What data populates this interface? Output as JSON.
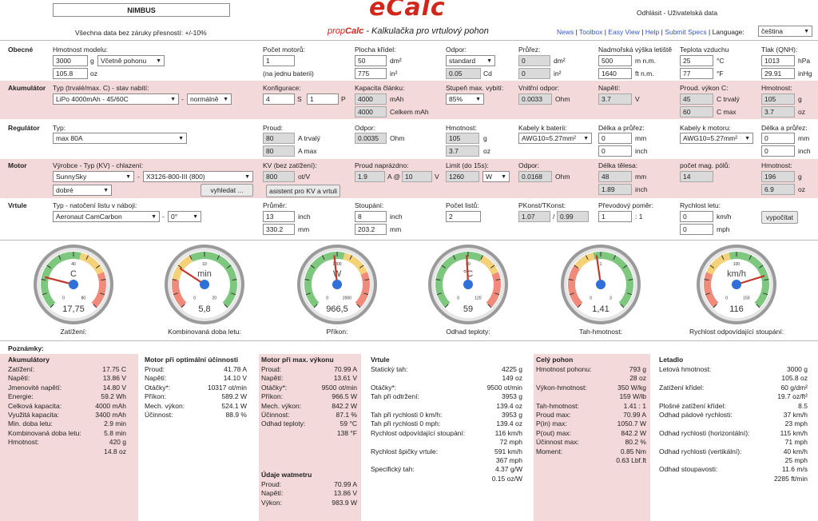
{
  "header": {
    "model_name": "NIMBUS",
    "disclaimer": "Všechna data bez záruky přesností: +/-10%",
    "logo": "eCalc",
    "tagline_prop": "prop",
    "tagline_calc": "Calc",
    "tagline_rest": " - Kalkulačka pro vrtulový pohon",
    "login": "Odhlásit - Uživatelská data",
    "links": [
      "News",
      "Toolbox",
      "Easy View",
      "Help",
      "Submit Specs"
    ],
    "language_label": "Language:",
    "language_value": "čeština"
  },
  "general": {
    "title": "Obecné",
    "model_weight_label": "Hmotnost modelu:",
    "weight": "3000",
    "weight_unit": "g",
    "weight_mode": "Včetně pohonu",
    "weight_oz": "105.8",
    "weight_oz_unit": "oz",
    "motors_label": "Počet motorů:",
    "motors": "1",
    "motors_note": "(na jednu baterii)",
    "wing_area_label": "Plocha křídel:",
    "wing_area": "50",
    "wing_area_unit": "dm²",
    "wing_area_in": "775",
    "wing_area_in_unit": "in²",
    "drag_label": "Odpor:",
    "drag": "standard",
    "cd": "0.05",
    "cd_unit": "Cd",
    "span_label": "Průřez:",
    "span": "0",
    "span_unit": "dm²",
    "span_in": "0",
    "span_in_unit": "in²",
    "elev_label": "Nadmořská výška letiště",
    "elev": "500",
    "elev_unit": "m n.m.",
    "elev_ft": "1640",
    "elev_ft_unit": "ft n.m.",
    "temp_label": "Teplota vzduchu",
    "temp": "25",
    "temp_unit": "°C",
    "temp_f": "77",
    "temp_f_unit": "°F",
    "press_label": "Tlak (QNH):",
    "press": "1013",
    "press_unit": "hPa",
    "press_in": "29.91",
    "press_in_unit": "inHg"
  },
  "battery": {
    "title": "Akumulátor",
    "type_label": "Typ (trvalé/max. C) - stav nabití:",
    "type": "LiPo 4000mAh - 45/60C",
    "state": "normálně",
    "config_label": "Konfigurace:",
    "s": "4",
    "s_unit": "S",
    "p": "1",
    "p_unit": "P",
    "cap_label": "Kapacita článku:",
    "cap": "4000",
    "cap_unit": "mAh",
    "cap_total": "4000",
    "cap_total_unit": "Celkem mAh",
    "discharge_label": "Stupeň max. vybití:",
    "discharge": "85%",
    "res_label": "Vnitřní odpor:",
    "res": "0.0033",
    "res_unit": "Ohm",
    "volt_label": "Napětí:",
    "volt": "3.7",
    "volt_unit": "V",
    "cur_label": "Proud. výkon C:",
    "c_cont": "45",
    "c_cont_unit": "C trvalý",
    "c_max": "60",
    "c_max_unit": "C max",
    "mass_label": "Hmotnost:",
    "mass": "105",
    "mass_unit": "g",
    "mass_oz": "3.7",
    "mass_oz_unit": "oz"
  },
  "esc": {
    "title": "Regulátor",
    "type_label": "Typ:",
    "type": "max 80A",
    "cur_label": "Proud:",
    "cur_cont": "80",
    "cur_cont_unit": "A trvalý",
    "cur_max": "80",
    "cur_max_unit": "A max",
    "res_label": "Odpor:",
    "res": "0.0035",
    "res_unit": "Ohm",
    "mass_label": "Hmotnost:",
    "mass": "105",
    "mass_unit": "g",
    "mass_oz": "3.7",
    "mass_oz_unit": "oz",
    "cable_bat_label": "Kabely k baterii:",
    "cable_bat": "AWG10=5.27mm²",
    "len_label": "Délka a průřez:",
    "len1": "0",
    "len1_unit": "mm",
    "len1_in": "0",
    "len1_in_unit": "inch",
    "cable_mot_label": "Kabely k motoru:",
    "cable_mot": "AWG10=5.27mm²",
    "len2": "0",
    "len2_unit": "mm",
    "len2_in": "0",
    "len2_in_unit": "inch"
  },
  "motor": {
    "title": "Motor",
    "maker_label": "Výrobce - Typ (KV) - chlazení:",
    "maker": "SunnySky",
    "type": "X3126-800-III (800)",
    "cooling": "dobré",
    "search_btn": "vyhledat ...",
    "kv_label": "KV (bez zatížení):",
    "kv": "800",
    "kv_unit": "ot/V",
    "kv_btn": "asistent pro KV a vrtuli",
    "i0_label": "Proud naprázdno:",
    "i0": "1.9",
    "i0_unit": "A @",
    "v0": "10",
    "v0_unit": "V",
    "limit_label": "Limit (do 15s):",
    "limit": "1260",
    "limit_unit": "W",
    "res_label": "Odpor:",
    "res": "0.0168",
    "res_unit": "Ohm",
    "len_label": "Délka tělesa:",
    "len": "48",
    "len_unit": "mm",
    "len_in": "1.89",
    "len_in_unit": "inch",
    "poles_label": "počet mag. pólů:",
    "poles": "14",
    "mass_label": "Hmotnost:",
    "mass": "196",
    "mass_unit": "g",
    "mass_oz": "6.9",
    "mass_oz_unit": "oz"
  },
  "prop": {
    "title": "Vrtule",
    "type_label": "Typ - natočení listu v náboji:",
    "type": "Aeronaut CamCarbon",
    "pitch_angle": "0°",
    "dia_label": "Průměr:",
    "dia": "13",
    "dia_unit": "inch",
    "dia_mm": "330.2",
    "dia_mm_unit": "mm",
    "pitch_label": "Stoupání:",
    "pitch": "8",
    "pitch_unit": "inch",
    "pitch_mm": "203.2",
    "pitch_mm_unit": "mm",
    "blades_label": "Počet listů:",
    "blades": "2",
    "pconst_label": "PKonst/TKonst:",
    "pconst": "1.07",
    "tconst": "0.99",
    "gear_label": "Převodový poměr:",
    "gear": "1",
    "gear_unit": ": 1",
    "speed_label": "Rychlost letu:",
    "speed": "0",
    "speed_unit": "km/h",
    "speed_mph": "0",
    "speed_mph_unit": "mph",
    "calc_btn": "vypočítat"
  },
  "gauges": [
    {
      "unit": "C",
      "value": "17,75",
      "caption": "Zatížení:",
      "min": "0",
      "max": "80",
      "mid": "40",
      "frac": 0.22
    },
    {
      "unit": "min",
      "value": "5,8",
      "caption": "Kombinovaná doba letu:",
      "min": "0",
      "max": "20",
      "mid": "10",
      "frac": 0.29
    },
    {
      "unit": "W",
      "value": "966,5",
      "caption": "Příkon:",
      "min": "0",
      "max": "2000",
      "mid": "1000",
      "frac": 0.48
    },
    {
      "unit": "°C",
      "value": "59",
      "caption": "Odhad teploty:",
      "min": "0",
      "max": "120",
      "mid": "80",
      "frac": 0.49
    },
    {
      "unit": "",
      "value": "1,41",
      "caption": "Tah-hmotnost:",
      "min": "0",
      "max": "3",
      "mid": "1",
      "frac": 0.47
    },
    {
      "unit": "km/h",
      "value": "116",
      "caption": "Rychlost odpovídající stoupání:",
      "min": "0",
      "max": "150",
      "mid": "100",
      "frac": 0.77
    }
  ],
  "notes_title": "Poznámky:",
  "notes": {
    "akku": {
      "title": "Akumulátory",
      "rows": [
        [
          "Zatížení:",
          "17.75 C"
        ],
        [
          "Napětí:",
          "13.86 V"
        ],
        [
          "Jmenovité napětí:",
          "14.80 V"
        ],
        [
          "Energie:",
          "59.2 Wh"
        ],
        [
          "Celková kapacita:",
          "4000 mAh"
        ],
        [
          "Využitá kapacita:",
          "3400 mAh"
        ],
        [
          "Min. doba letu:",
          "2.9 min"
        ],
        [
          "Kombinovaná doba letu:",
          "5.8 min"
        ],
        [
          "Hmotnost:",
          "420 g"
        ],
        [
          "",
          "14.8 oz"
        ]
      ]
    },
    "motor_opt": {
      "title": "Motor při optimální účinnosti",
      "rows": [
        [
          "Proud:",
          "41.78 A"
        ],
        [
          "Napětí:",
          "14.10 V"
        ],
        [
          "Otáčky*:",
          "10317 ot/min"
        ],
        [
          "Příkon:",
          "589.2 W"
        ],
        [
          "Mech. výkon:",
          "524.1 W"
        ],
        [
          "Účinnost:",
          "88.9 %"
        ]
      ]
    },
    "motor_max": {
      "title": "Motor při max. výkonu",
      "rows": [
        [
          "Proud:",
          "70.99 A"
        ],
        [
          "Napětí:",
          "13.61 V"
        ],
        [
          "Otáčky*:",
          "9500 ot/min"
        ],
        [
          "Příkon:",
          "966.5 W"
        ],
        [
          "Mech. výkon:",
          "842.2 W"
        ],
        [
          "Účinnost:",
          "87.1 %"
        ],
        [
          "Odhad teploty:",
          "59 °C"
        ],
        [
          "",
          "138 °F"
        ]
      ]
    },
    "watt": {
      "title": "Údaje watmetru",
      "rows": [
        [
          "Proud:",
          "70.99 A"
        ],
        [
          "Napětí:",
          "13.86 V"
        ],
        [
          "Výkon:",
          "983.9 W"
        ]
      ]
    },
    "prop": {
      "title": "Vrtule",
      "rows": [
        [
          "Statický tah:",
          "4225 g"
        ],
        [
          "",
          "149 oz"
        ],
        [
          "Otáčky*:",
          "9500 ot/min"
        ],
        [
          "Tah při odtržení:",
          "3953 g"
        ],
        [
          "",
          "139.4 oz"
        ],
        [
          "Tah při rychlosti 0 km/h:",
          "3953 g"
        ],
        [
          "Tah při rychlosti 0 mph:",
          "139.4 oz"
        ],
        [
          "Rychlost odpovídající stoupání:",
          "116 km/h"
        ],
        [
          "",
          "72 mph"
        ],
        [
          "Rychlost špičky vrtule:",
          "591 km/h"
        ],
        [
          "",
          "367 mph"
        ],
        [
          "Specifický tah:",
          "4.37 g/W"
        ],
        [
          "",
          "0.15 oz/W"
        ]
      ]
    },
    "drive": {
      "title": "Celý pohon",
      "rows": [
        [
          "Hmotnost pohonu:",
          "793 g"
        ],
        [
          "",
          "28 oz"
        ],
        [
          "Výkon-hmotnost:",
          "350 W/kg"
        ],
        [
          "",
          "159 W/lb"
        ],
        [
          "Tah-hmotnost:",
          "1.41 : 1"
        ],
        [
          "Proud max:",
          "70.99 A"
        ],
        [
          "P(in) max:",
          "1050.7 W"
        ],
        [
          "P(out) max:",
          "842.2 W"
        ],
        [
          "Účinnost max:",
          "80.2 %"
        ],
        [
          "Moment:",
          "0.85 Nm"
        ],
        [
          "",
          "0.63 Lbf.ft"
        ]
      ]
    },
    "plane": {
      "title": "Letadlo",
      "rows": [
        [
          "Letová hmotnost:",
          "3000 g"
        ],
        [
          "",
          "105.8 oz"
        ],
        [
          "Zatížení křídel:",
          "60 g/dm²"
        ],
        [
          "",
          "19.7 oz/ft²"
        ],
        [
          "Plošné zatížení křídel:",
          "8.5"
        ],
        [
          "Odhad pádové rychlosti:",
          "37 km/h"
        ],
        [
          "",
          "23 mph"
        ],
        [
          "Odhad rychlosti (horizontální):",
          "115 km/h"
        ],
        [
          "",
          "71 mph"
        ],
        [
          "Odhad rychlosti (vertikální):",
          "40 km/h"
        ],
        [
          "",
          "25 mph"
        ],
        [
          "Odhad stoupavosti:",
          "11.6 m/s"
        ],
        [
          "",
          "2285 ft/min"
        ]
      ]
    }
  }
}
